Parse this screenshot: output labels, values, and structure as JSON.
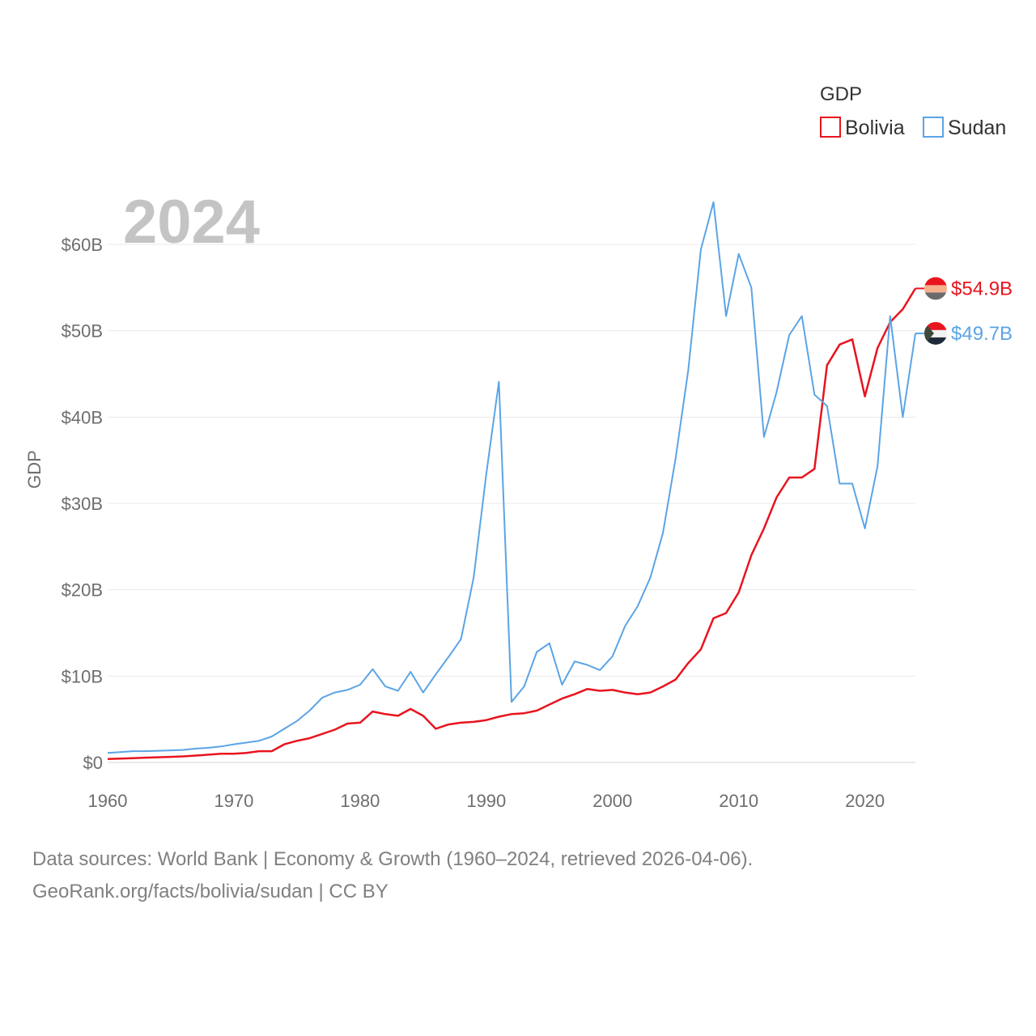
{
  "chart_data": {
    "type": "line",
    "title": "GDP",
    "year_label": "2024",
    "ylabel": "GDP",
    "xlim": [
      1960,
      2024
    ],
    "ylim": [
      0,
      60
    ],
    "x_ticks": [
      "1960",
      "1970",
      "1980",
      "1990",
      "2000",
      "2010",
      "2020"
    ],
    "y_ticks": [
      "$0",
      "$10B",
      "$20B",
      "$30B",
      "$40B",
      "$50B",
      "$60B"
    ],
    "x": [
      1960,
      1961,
      1962,
      1963,
      1964,
      1965,
      1966,
      1967,
      1968,
      1969,
      1970,
      1971,
      1972,
      1973,
      1974,
      1975,
      1976,
      1977,
      1978,
      1979,
      1980,
      1981,
      1982,
      1983,
      1984,
      1985,
      1986,
      1987,
      1988,
      1989,
      1990,
      1991,
      1992,
      1993,
      1994,
      1995,
      1996,
      1997,
      1998,
      1999,
      2000,
      2001,
      2002,
      2003,
      2004,
      2005,
      2006,
      2007,
      2008,
      2009,
      2010,
      2011,
      2012,
      2013,
      2014,
      2015,
      2016,
      2017,
      2018,
      2019,
      2020,
      2021,
      2022,
      2023,
      2024
    ],
    "series": [
      {
        "name": "Bolivia",
        "color": "#e8141e",
        "end_label": "$54.9B",
        "values": [
          0.4,
          0.45,
          0.5,
          0.55,
          0.6,
          0.65,
          0.7,
          0.8,
          0.9,
          1.0,
          1.0,
          1.1,
          1.3,
          1.3,
          2.1,
          2.5,
          2.8,
          3.3,
          3.8,
          4.5,
          4.6,
          5.9,
          5.6,
          5.4,
          6.2,
          5.4,
          3.9,
          4.4,
          4.6,
          4.7,
          4.9,
          5.3,
          5.6,
          5.7,
          6.0,
          6.7,
          7.4,
          7.9,
          8.5,
          8.3,
          8.4,
          8.1,
          7.9,
          8.1,
          8.8,
          9.6,
          11.5,
          13.1,
          16.7,
          17.3,
          19.7,
          24.0,
          27.1,
          30.7,
          33.0,
          33.0,
          34.0,
          46.0,
          48.4,
          49.0,
          42.4,
          48.0,
          51.0,
          52.5,
          54.9
        ]
      },
      {
        "name": "Sudan",
        "color": "#5ba4e6",
        "end_label": "$49.7B",
        "values": [
          1.1,
          1.2,
          1.3,
          1.3,
          1.35,
          1.4,
          1.45,
          1.6,
          1.7,
          1.85,
          2.1,
          2.3,
          2.5,
          3.0,
          3.9,
          4.8,
          6.0,
          7.5,
          8.1,
          8.4,
          9.0,
          10.8,
          8.8,
          8.3,
          10.5,
          8.1,
          10.2,
          12.2,
          14.3,
          21.4,
          33.4,
          44.1,
          7.0,
          8.8,
          12.8,
          13.8,
          9.0,
          11.7,
          11.3,
          10.7,
          12.3,
          15.8,
          18.1,
          21.4,
          26.6,
          35.2,
          45.4,
          59.4,
          64.9,
          51.7,
          58.9,
          55.0,
          37.7,
          42.9,
          49.5,
          51.7,
          42.6,
          41.3,
          32.3,
          32.3,
          27.1,
          34.3,
          51.7,
          40.0,
          49.7
        ]
      }
    ],
    "legend": {
      "title": "GDP",
      "position": "top-right"
    }
  },
  "footer": {
    "line1": "Data sources: World Bank | Economy & Growth (1960–2024, retrieved 2026-04-06).",
    "line2": "GeoRank.org/facts/bolivia/sudan | CC BY"
  }
}
